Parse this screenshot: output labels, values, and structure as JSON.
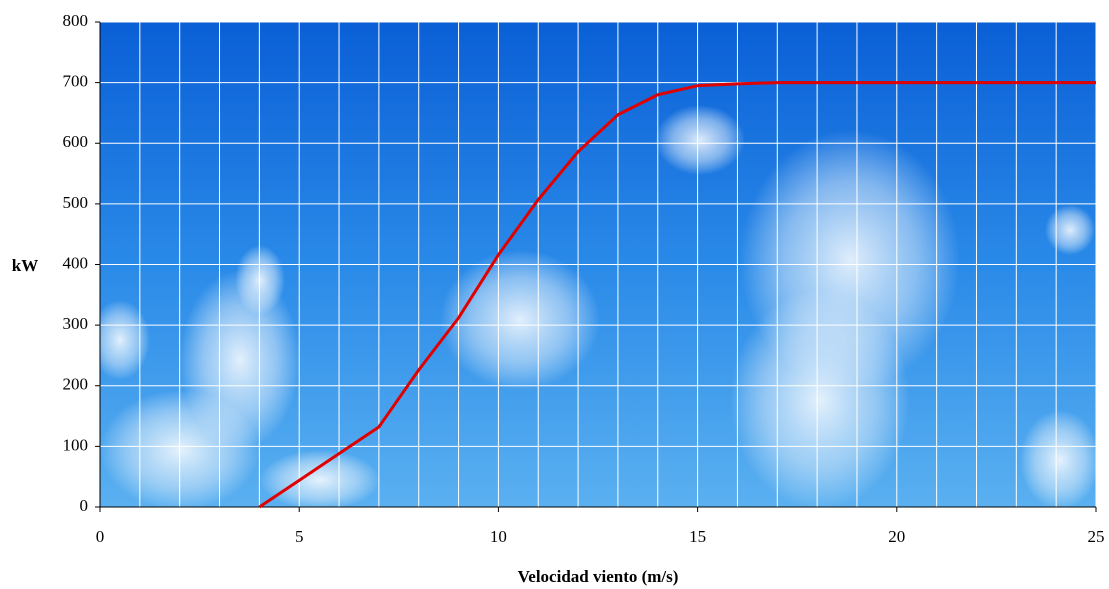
{
  "chart_data": {
    "type": "line",
    "x_label": "Velocidad viento (m/s)",
    "y_label": "kW",
    "x": [
      4,
      5,
      6,
      7,
      8,
      9,
      10,
      11,
      12,
      13,
      14,
      15,
      16,
      17,
      18,
      19,
      20,
      21,
      22,
      23,
      24,
      25
    ],
    "series": [
      {
        "name": "kW",
        "color": "#e00000",
        "values": [
          0,
          44,
          88,
          132,
          226,
          312,
          416,
          507,
          586,
          647,
          680,
          695,
          698,
          700,
          700,
          700,
          700,
          700,
          700,
          700,
          700,
          700
        ]
      }
    ],
    "xlim": [
      0,
      25
    ],
    "ylim": [
      0,
      800
    ],
    "xticks": [
      0,
      5,
      10,
      15,
      20,
      25
    ],
    "yticks": [
      0,
      100,
      200,
      300,
      400,
      500,
      600,
      700,
      800
    ],
    "xgrid": [
      0,
      1,
      2,
      3,
      4,
      5,
      6,
      7,
      8,
      9,
      10,
      11,
      12,
      13,
      14,
      15,
      16,
      17,
      18,
      19,
      20,
      21,
      22,
      23,
      24,
      25
    ],
    "grid": true
  }
}
